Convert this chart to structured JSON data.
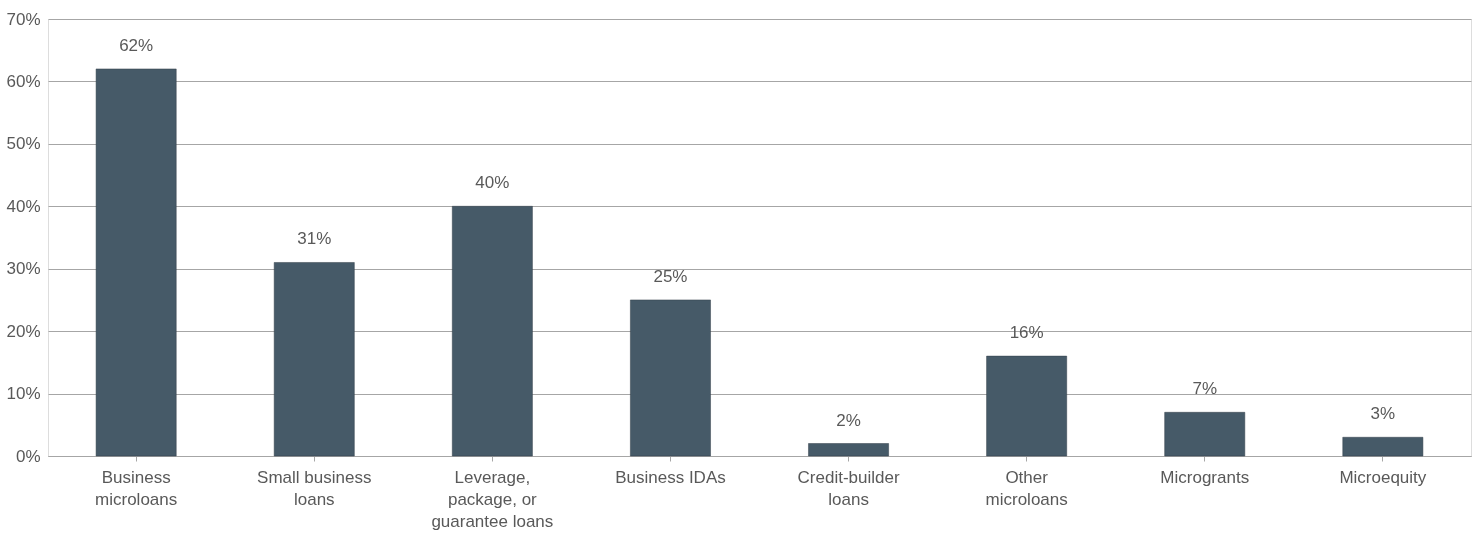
{
  "chart_data": {
    "type": "bar",
    "categories": [
      "Business microloans",
      "Small business loans",
      "Leverage, package, or guarantee loans",
      "Business IDAs",
      "Credit-builder loans",
      "Other microloans",
      "Microgrants",
      "Microequity"
    ],
    "values": [
      62,
      31,
      40,
      25,
      2,
      16,
      7,
      3
    ],
    "value_labels": [
      "62%",
      "31%",
      "40%",
      "25%",
      "2%",
      "16%",
      "7%",
      "3%"
    ],
    "color": "#465a68",
    "ylim": [
      0,
      70
    ],
    "yticks": [
      {
        "value": 0,
        "label": "0%"
      },
      {
        "value": 10,
        "label": "10%"
      },
      {
        "value": 20,
        "label": "20%"
      },
      {
        "value": 30,
        "label": "30%"
      },
      {
        "value": 40,
        "label": "40%"
      },
      {
        "value": 50,
        "label": "50%"
      },
      {
        "value": 60,
        "label": "60%"
      },
      {
        "value": 70,
        "label": "70%"
      }
    ],
    "grid": "y"
  }
}
